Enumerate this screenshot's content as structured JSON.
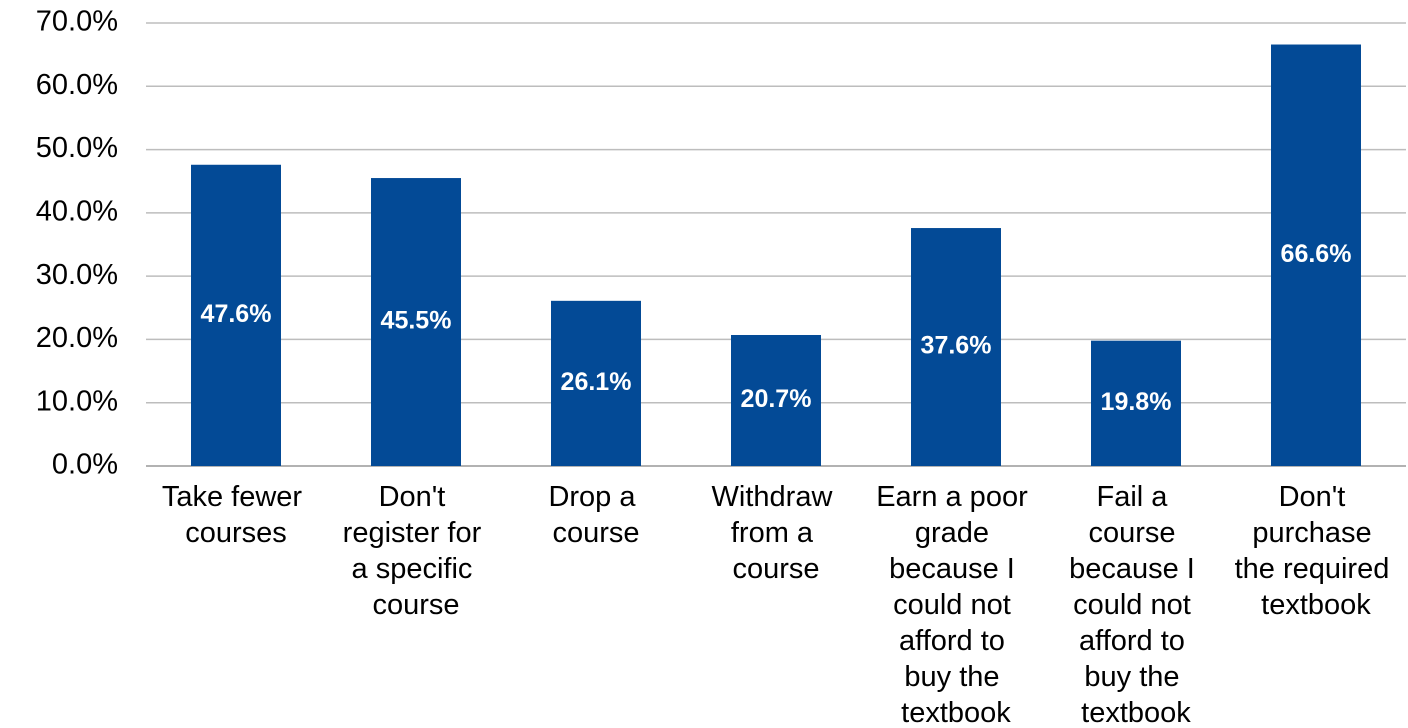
{
  "chart_data": {
    "type": "bar",
    "categories": [
      "Take fewer courses",
      "Don't register for a specific course",
      "Drop a course",
      "Withdraw from a course",
      "Earn a poor grade because I could not afford to buy the textbook",
      "Fail a course because I could not afford to buy the textbook",
      "Don't purchase the required textbook"
    ],
    "values": [
      47.6,
      45.5,
      26.1,
      20.7,
      37.6,
      19.8,
      66.6
    ],
    "value_labels": [
      "47.6%",
      "45.5%",
      "26.1%",
      "20.7%",
      "37.6%",
      "19.8%",
      "66.6%"
    ],
    "color": "#034a96",
    "ylim": [
      0,
      70
    ],
    "yticks": [
      {
        "value": 0,
        "label": "0.0%"
      },
      {
        "value": 10,
        "label": "10.0%"
      },
      {
        "value": 20,
        "label": "20.0%"
      },
      {
        "value": 30,
        "label": "30.0%"
      },
      {
        "value": 40,
        "label": "40.0%"
      },
      {
        "value": 50,
        "label": "50.0%"
      },
      {
        "value": 60,
        "label": "60.0%"
      },
      {
        "value": 70,
        "label": "70.0%"
      }
    ],
    "grid": true
  }
}
